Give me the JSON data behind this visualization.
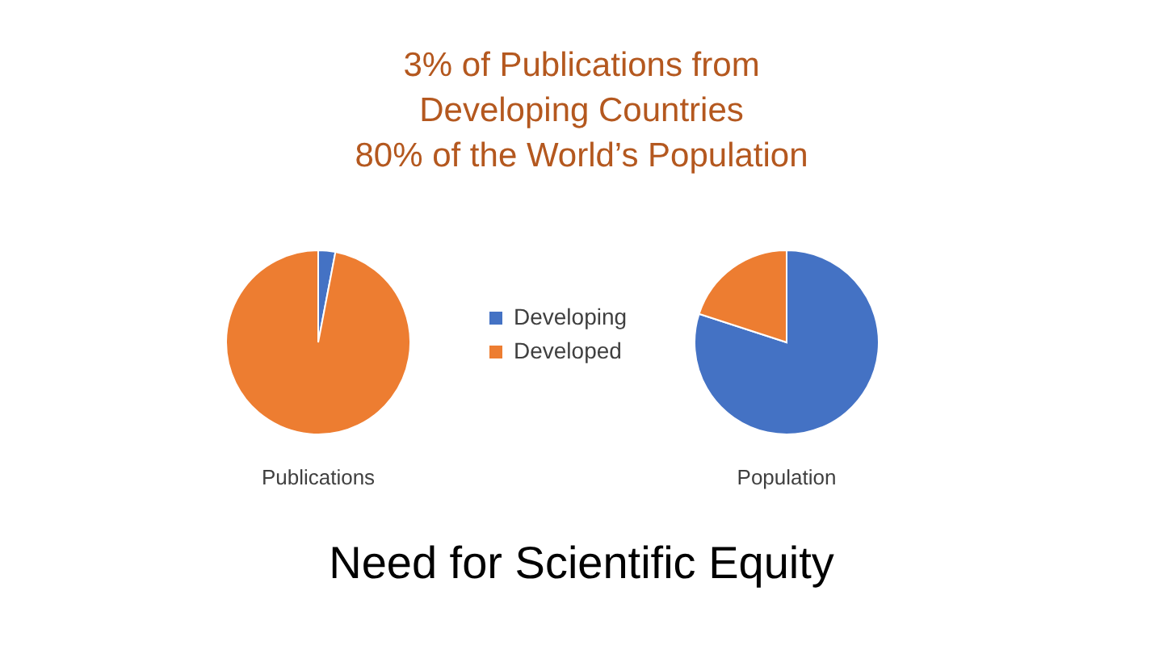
{
  "chart_data": {
    "type": "pie",
    "title": "3% of Publications from\nDeveloping Countries\n80% of the World’s Population",
    "categories": [
      "Developing",
      "Developed"
    ],
    "colors": [
      "#4472c4",
      "#ed7d31"
    ],
    "series": [
      {
        "name": "Publications",
        "values": [
          3,
          97
        ]
      },
      {
        "name": "Population",
        "values": [
          80,
          20
        ]
      }
    ],
    "legend": "center",
    "annotations": [
      "Need for Scientific Equity"
    ]
  }
}
